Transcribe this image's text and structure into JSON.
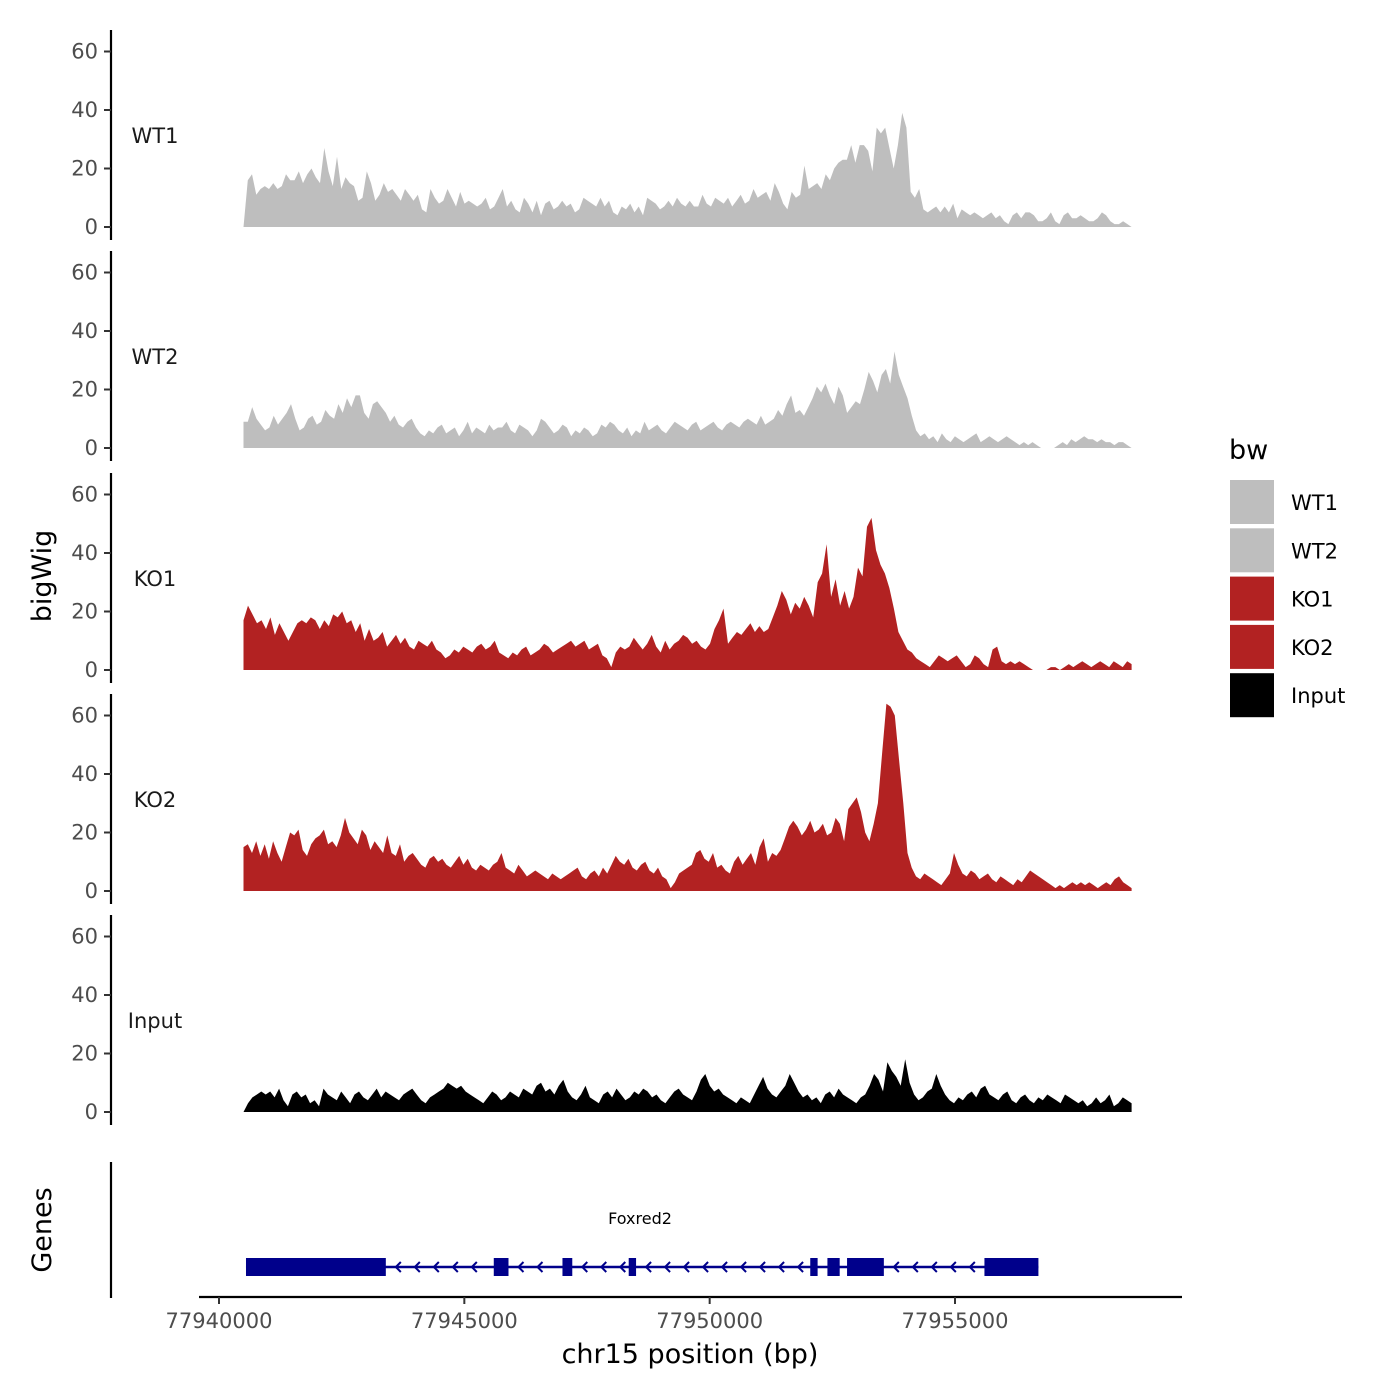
{
  "chart_data": {
    "type": "area",
    "y_axis_title": "bigWig",
    "x_axis_title": "chr15 position (bp)",
    "genes_axis_title": "Genes",
    "x_range": [
      77940500,
      77958600
    ],
    "x_ticks": [
      77940000,
      77945000,
      77950000,
      77955000
    ],
    "x_tick_labels": [
      "77940000",
      "77945000",
      "77950000",
      "77955000"
    ],
    "y_range": [
      0,
      65
    ],
    "y_ticks": [
      0,
      20,
      40,
      60
    ],
    "y_tick_labels": [
      "0",
      "20",
      "40",
      "60"
    ],
    "legend_title": "bw",
    "legend_position": "right",
    "tracks": [
      {
        "name": "WT1",
        "color": "#bebebe",
        "values": [
          0,
          16,
          18,
          11,
          13,
          14,
          13,
          15,
          13,
          14,
          18,
          16,
          16,
          19,
          15,
          18,
          20,
          17,
          15,
          27,
          19,
          14,
          24,
          13,
          17,
          15,
          14,
          9,
          10,
          19,
          15,
          9,
          11,
          15,
          12,
          13,
          11,
          9,
          13,
          11,
          9,
          11,
          6,
          5,
          13,
          10,
          8,
          9,
          13,
          10,
          7,
          12,
          8,
          9,
          8,
          7,
          8,
          10,
          6,
          7,
          10,
          13,
          7,
          9,
          6,
          5,
          10,
          8,
          5,
          9,
          4,
          8,
          9,
          6,
          7,
          9,
          7,
          8,
          5,
          6,
          10,
          9,
          8,
          7,
          10,
          7,
          9,
          5,
          4,
          7,
          6,
          8,
          5,
          7,
          4,
          10,
          9,
          8,
          6,
          7,
          9,
          7,
          10,
          8,
          7,
          9,
          7,
          7,
          11,
          8,
          7,
          10,
          9,
          8,
          10,
          7,
          9,
          11,
          8,
          9,
          13,
          10,
          11,
          12,
          9,
          15,
          12,
          8,
          6,
          12,
          10,
          11,
          21,
          13,
          14,
          15,
          13,
          18,
          16,
          20,
          22,
          23,
          23,
          28,
          22,
          28,
          28,
          26,
          19,
          34,
          32,
          34,
          27,
          20,
          28,
          39,
          34,
          12,
          10,
          13,
          6,
          5,
          6,
          7,
          5,
          7,
          5,
          8,
          3,
          6,
          5,
          4,
          5,
          4,
          3,
          4,
          5,
          3,
          4,
          2,
          1,
          4,
          5,
          3,
          5,
          5,
          4,
          2,
          2,
          3,
          5,
          2,
          1,
          4,
          5,
          3,
          3,
          4,
          3,
          2,
          2,
          3,
          5,
          4,
          2,
          1,
          1,
          2,
          1,
          0
        ]
      },
      {
        "name": "WT2",
        "color": "#bebebe",
        "values": [
          9,
          9,
          14,
          10,
          8,
          6,
          7,
          11,
          8,
          10,
          12,
          15,
          10,
          6,
          7,
          10,
          11,
          8,
          9,
          13,
          11,
          10,
          15,
          12,
          17,
          14,
          18,
          18,
          12,
          10,
          15,
          16,
          14,
          12,
          9,
          11,
          8,
          7,
          9,
          10,
          7,
          5,
          4,
          6,
          5,
          7,
          8,
          5,
          6,
          7,
          4,
          6,
          9,
          5,
          7,
          6,
          5,
          8,
          6,
          7,
          7,
          9,
          6,
          5,
          8,
          7,
          6,
          4,
          6,
          10,
          9,
          7,
          5,
          6,
          8,
          7,
          4,
          6,
          5,
          7,
          6,
          4,
          5,
          8,
          7,
          9,
          8,
          6,
          5,
          7,
          4,
          6,
          5,
          9,
          6,
          7,
          8,
          6,
          5,
          7,
          9,
          8,
          7,
          6,
          8,
          9,
          6,
          7,
          8,
          9,
          7,
          6,
          8,
          9,
          8,
          7,
          9,
          10,
          9,
          8,
          11,
          8,
          9,
          10,
          13,
          11,
          15,
          18,
          12,
          13,
          11,
          14,
          17,
          21,
          19,
          22,
          18,
          15,
          21,
          18,
          12,
          14,
          16,
          15,
          20,
          26,
          23,
          19,
          25,
          27,
          22,
          33,
          25,
          21,
          17,
          11,
          6,
          4,
          5,
          3,
          4,
          2,
          5,
          3,
          2,
          4,
          3,
          2,
          3,
          4,
          5,
          2,
          3,
          4,
          3,
          2,
          3,
          4,
          3,
          2,
          1,
          2,
          1,
          2,
          1,
          0,
          0,
          0,
          0,
          1,
          2,
          1,
          3,
          2,
          3,
          4,
          3,
          3,
          2,
          3,
          2,
          2,
          1,
          2,
          2,
          1,
          0
        ]
      },
      {
        "name": "KO1",
        "color": "#b22222",
        "values": [
          17,
          22,
          19,
          16,
          17,
          14,
          18,
          12,
          16,
          13,
          10,
          13,
          16,
          17,
          16,
          18,
          17,
          14,
          17,
          15,
          19,
          18,
          20,
          16,
          17,
          13,
          16,
          10,
          14,
          10,
          11,
          13,
          8,
          10,
          12,
          9,
          11,
          8,
          7,
          10,
          9,
          8,
          10,
          7,
          6,
          4,
          5,
          7,
          6,
          8,
          7,
          6,
          8,
          9,
          7,
          8,
          10,
          6,
          5,
          4,
          6,
          5,
          7,
          8,
          5,
          6,
          7,
          9,
          8,
          6,
          7,
          8,
          9,
          10,
          8,
          9,
          10,
          7,
          8,
          9,
          5,
          4,
          1,
          6,
          8,
          7,
          8,
          11,
          9,
          7,
          9,
          12,
          8,
          6,
          10,
          7,
          9,
          10,
          12,
          11,
          9,
          10,
          8,
          7,
          9,
          14,
          17,
          21,
          9,
          11,
          13,
          12,
          14,
          16,
          13,
          15,
          13,
          14,
          18,
          22,
          27,
          24,
          19,
          23,
          21,
          25,
          22,
          18,
          30,
          33,
          43,
          25,
          31,
          22,
          27,
          21,
          25,
          35,
          32,
          49,
          52,
          41,
          36,
          33,
          28,
          21,
          13,
          10,
          7,
          6,
          4,
          3,
          2,
          1,
          3,
          5,
          4,
          3,
          4,
          5,
          3,
          1,
          2,
          5,
          4,
          2,
          1,
          7,
          8,
          3,
          2,
          3,
          2,
          3,
          2,
          1,
          0,
          0,
          0,
          0,
          1,
          1,
          0,
          1,
          2,
          1,
          2,
          3,
          2,
          1,
          2,
          3,
          2,
          1,
          3,
          2,
          1,
          3,
          2
        ]
      },
      {
        "name": "KO2",
        "color": "#b22222",
        "values": [
          15,
          16,
          13,
          17,
          12,
          16,
          11,
          17,
          13,
          10,
          15,
          20,
          19,
          21,
          14,
          12,
          16,
          18,
          19,
          21,
          16,
          17,
          15,
          19,
          25,
          20,
          18,
          16,
          21,
          19,
          14,
          17,
          15,
          13,
          19,
          13,
          12,
          16,
          10,
          12,
          13,
          11,
          9,
          8,
          11,
          12,
          10,
          11,
          9,
          8,
          10,
          12,
          9,
          11,
          8,
          7,
          9,
          8,
          7,
          9,
          10,
          13,
          8,
          7,
          6,
          9,
          7,
          5,
          6,
          7,
          6,
          5,
          4,
          6,
          5,
          4,
          5,
          6,
          7,
          8,
          5,
          4,
          6,
          7,
          5,
          8,
          6,
          9,
          12,
          10,
          9,
          11,
          8,
          7,
          9,
          10,
          7,
          6,
          8,
          5,
          4,
          1,
          3,
          6,
          7,
          8,
          9,
          13,
          14,
          11,
          10,
          13,
          8,
          9,
          7,
          6,
          10,
          12,
          9,
          11,
          13,
          9,
          15,
          18,
          10,
          13,
          12,
          14,
          18,
          22,
          24,
          22,
          19,
          21,
          24,
          20,
          21,
          23,
          19,
          20,
          25,
          23,
          17,
          28,
          30,
          32,
          27,
          20,
          17,
          23,
          30,
          47,
          64,
          63,
          60,
          45,
          30,
          13,
          8,
          5,
          4,
          6,
          5,
          4,
          3,
          2,
          4,
          6,
          13,
          9,
          6,
          5,
          7,
          6,
          4,
          5,
          6,
          4,
          3,
          5,
          4,
          3,
          2,
          4,
          3,
          5,
          7,
          6,
          5,
          4,
          3,
          2,
          1,
          2,
          1,
          2,
          3,
          2,
          3,
          2,
          3,
          2,
          1,
          2,
          3,
          2,
          4,
          5,
          3,
          2,
          1
        ]
      },
      {
        "name": "Input",
        "color": "#000000",
        "values": [
          0,
          3,
          5,
          6,
          7,
          6,
          7,
          5,
          8,
          4,
          2,
          6,
          7,
          5,
          6,
          3,
          4,
          2,
          8,
          6,
          5,
          4,
          7,
          5,
          3,
          6,
          7,
          5,
          4,
          6,
          8,
          5,
          7,
          6,
          5,
          4,
          6,
          7,
          8,
          6,
          4,
          3,
          5,
          6,
          7,
          8,
          10,
          9,
          8,
          9,
          7,
          6,
          5,
          4,
          3,
          5,
          7,
          6,
          4,
          5,
          7,
          6,
          5,
          8,
          7,
          6,
          9,
          10,
          7,
          8,
          6,
          9,
          11,
          7,
          5,
          4,
          6,
          9,
          5,
          4,
          3,
          6,
          7,
          5,
          8,
          6,
          4,
          5,
          7,
          6,
          8,
          7,
          5,
          6,
          4,
          3,
          5,
          7,
          8,
          6,
          5,
          4,
          7,
          11,
          13,
          9,
          7,
          8,
          6,
          5,
          4,
          3,
          5,
          4,
          3,
          6,
          9,
          12,
          8,
          6,
          5,
          7,
          9,
          13,
          10,
          7,
          5,
          6,
          4,
          5,
          3,
          6,
          7,
          5,
          8,
          6,
          5,
          4,
          3,
          5,
          6,
          9,
          13,
          11,
          7,
          17,
          14,
          12,
          9,
          18,
          10,
          6,
          4,
          5,
          7,
          8,
          13,
          9,
          6,
          4,
          3,
          5,
          4,
          6,
          7,
          5,
          8,
          9,
          6,
          5,
          4,
          6,
          7,
          4,
          3,
          5,
          6,
          4,
          3,
          5,
          4,
          6,
          5,
          4,
          3,
          6,
          5,
          4,
          3,
          4,
          2,
          3,
          5,
          3,
          4,
          6,
          2,
          3,
          5,
          4,
          3
        ]
      }
    ],
    "gene": {
      "name": "Foxred2",
      "color": "#00008b",
      "strand": "-",
      "start": 77940550,
      "end": 77956700,
      "exons": [
        [
          77940550,
          77943400
        ],
        [
          77945600,
          77945900
        ],
        [
          77947000,
          77947200
        ],
        [
          77948350,
          77948500
        ],
        [
          77952050,
          77952200
        ],
        [
          77952400,
          77952650
        ],
        [
          77952800,
          77953550
        ],
        [
          77955600,
          77956700
        ]
      ]
    }
  }
}
